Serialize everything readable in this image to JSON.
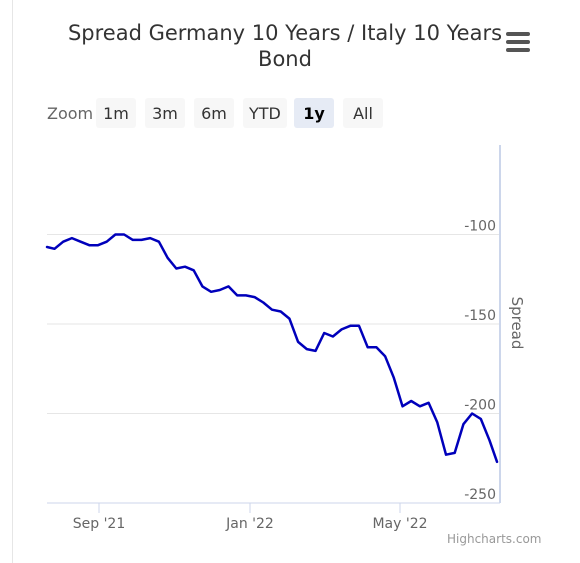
{
  "title": "Spread Germany 10 Years / Italy 10 Years Bond",
  "menu_icon": "hamburger-menu-icon",
  "zoom": {
    "label": "Zoom",
    "buttons": [
      "1m",
      "3m",
      "6m",
      "YTD",
      "1y",
      "All"
    ],
    "selected": "1y"
  },
  "credits": "Highcharts.com",
  "chart_data": {
    "type": "line",
    "title": "Spread Germany 10 Years / Italy 10 Years Bond",
    "xlabel": "",
    "ylabel": "Spread",
    "x_tick_labels": [
      "Sep '21",
      "Jan '22",
      "May '22"
    ],
    "y_tick_labels": [
      "-100",
      "-150",
      "-200",
      "-250"
    ],
    "y_ticks": [
      -100,
      -150,
      -200,
      -250
    ],
    "ylim": [
      -250,
      -50
    ],
    "xlim": [
      "2021-07-06",
      "2022-07-03"
    ],
    "grid": "horizontal",
    "legend": "none",
    "color": "#0000bb",
    "series": [
      {
        "x": [
          "2021-07-06",
          "2021-07-12",
          "2021-07-19",
          "2021-07-26",
          "2021-08-02",
          "2021-08-09",
          "2021-08-16",
          "2021-08-23",
          "2021-08-30",
          "2021-09-06",
          "2021-09-13",
          "2021-09-20",
          "2021-09-27",
          "2021-10-04",
          "2021-10-11",
          "2021-10-18",
          "2021-10-25",
          "2021-11-01",
          "2021-11-08",
          "2021-11-15",
          "2021-11-22",
          "2021-11-29",
          "2021-12-06",
          "2021-12-13",
          "2021-12-20",
          "2021-12-27",
          "2022-01-03",
          "2022-01-10",
          "2022-01-17",
          "2022-01-24",
          "2022-01-31",
          "2022-02-07",
          "2022-02-14",
          "2022-02-21",
          "2022-02-28",
          "2022-03-07",
          "2022-03-14",
          "2022-03-21",
          "2022-03-28",
          "2022-04-04",
          "2022-04-11",
          "2022-04-18",
          "2022-04-25",
          "2022-05-02",
          "2022-05-09",
          "2022-05-16",
          "2022-05-23",
          "2022-05-30",
          "2022-06-06",
          "2022-06-13",
          "2022-06-20",
          "2022-06-27",
          "2022-07-03"
        ],
        "values": [
          -107,
          -108,
          -104,
          -102,
          -104,
          -106,
          -106,
          -104,
          -100,
          -100,
          -103,
          -103,
          -102,
          -104,
          -113,
          -119,
          -118,
          -120,
          -129,
          -132,
          -131,
          -129,
          -134,
          -134,
          -135,
          -138,
          -142,
          -143,
          -147,
          -160,
          -164,
          -165,
          -155,
          -157,
          -153,
          -151,
          -151,
          -163,
          -163,
          -168,
          -180,
          -196,
          -193,
          -196,
          -194,
          -205,
          -223,
          -222,
          -206,
          -200,
          -203,
          -215,
          -227
        ]
      }
    ]
  }
}
